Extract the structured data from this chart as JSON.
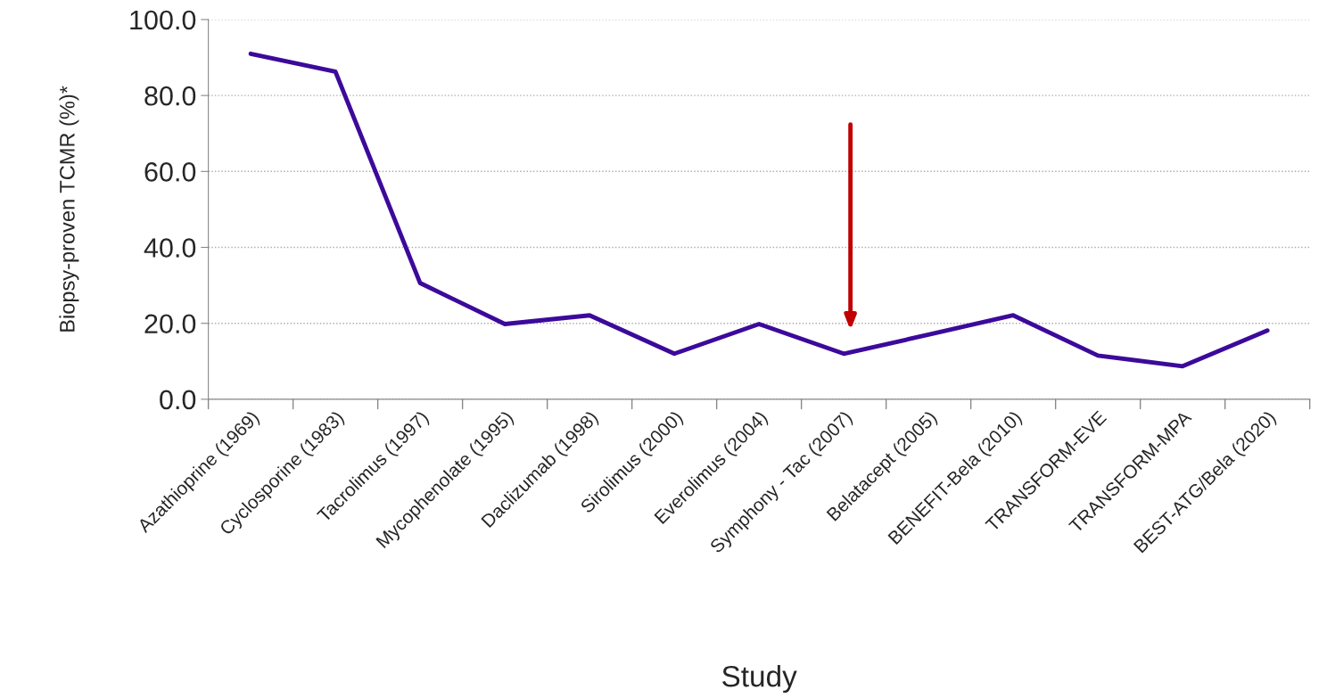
{
  "chart_data": {
    "type": "line",
    "xlabel": "Study",
    "ylabel": "Biopsy-proven TCMR (%)*",
    "categories": [
      "Azathioprine (1969)",
      "Cyclosporine (1983)",
      "Tacrolimus (1997)",
      "Mycophenolate (1995)",
      "Daclizumab (1998)",
      "Sirolimus (2000)",
      "Everolimus (2004)",
      "Symphony - Tac (2007)",
      "Belatacept (2005)",
      "BENEFIT-Bela (2010)",
      "TRANSFORM-EVE",
      "TRANSFORM-MPA",
      "BEST-ATG/Bela (2020)"
    ],
    "series": [
      {
        "color": "#3c0a9b",
        "values": [
          91.0,
          86.3,
          30.6,
          19.8,
          22.1,
          12.0,
          19.8,
          12.0,
          17.0,
          22.1,
          11.5,
          8.7,
          18.1
        ]
      }
    ],
    "ylim": [
      0,
      100
    ],
    "yticks": [
      {
        "value": 0,
        "label": "0.0"
      },
      {
        "value": 20,
        "label": "20.0"
      },
      {
        "value": 40,
        "label": "40.0"
      },
      {
        "value": 60,
        "label": "60.0"
      },
      {
        "value": 80,
        "label": "80.0"
      },
      {
        "value": 100,
        "label": "100.0"
      }
    ],
    "grid": "y",
    "marker": "none",
    "line_style": "solid"
  }
}
